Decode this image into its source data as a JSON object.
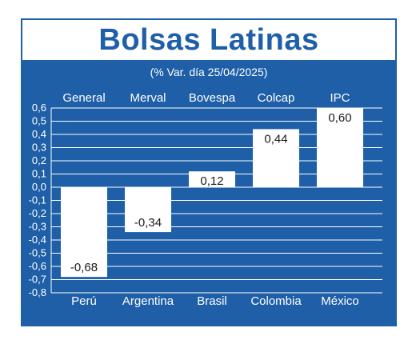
{
  "title": "Bolsas Latinas",
  "subtitle": "(% Var. día 25/04/2025)",
  "colors": {
    "background": "#1e5fa8",
    "bar": "#ffffff",
    "text": "#ffffff",
    "grid": "#ffffff"
  },
  "chart_data": {
    "type": "bar",
    "title": "Bolsas Latinas",
    "subtitle": "(% Var. día 25/04/2025)",
    "index_labels": [
      "General",
      "Merval",
      "Bovespa",
      "Colcap",
      "IPC"
    ],
    "categories": [
      "Perú",
      "Argentina",
      "Brasil",
      "Colombia",
      "México"
    ],
    "values": [
      -0.68,
      -0.34,
      0.12,
      0.44,
      0.6
    ],
    "value_labels": [
      "-0,68",
      "-0,34",
      "0,12",
      "0,44",
      "0,60"
    ],
    "ylim": [
      -0.8,
      0.6
    ],
    "yticks": [
      0.6,
      0.5,
      0.4,
      0.3,
      0.2,
      0.1,
      0.0,
      -0.1,
      -0.2,
      -0.3,
      -0.4,
      -0.5,
      -0.6,
      -0.7,
      -0.8
    ],
    "ytick_labels": [
      "0,6",
      "0,5",
      "0,4",
      "0,3",
      "0,2",
      "0,1",
      "0,0",
      "-0,1",
      "-0,2",
      "-0,3",
      "-0,4",
      "-0,5",
      "-0,6",
      "-0,7",
      "-0,8"
    ],
    "grid": true,
    "xlabel": "",
    "ylabel": ""
  }
}
